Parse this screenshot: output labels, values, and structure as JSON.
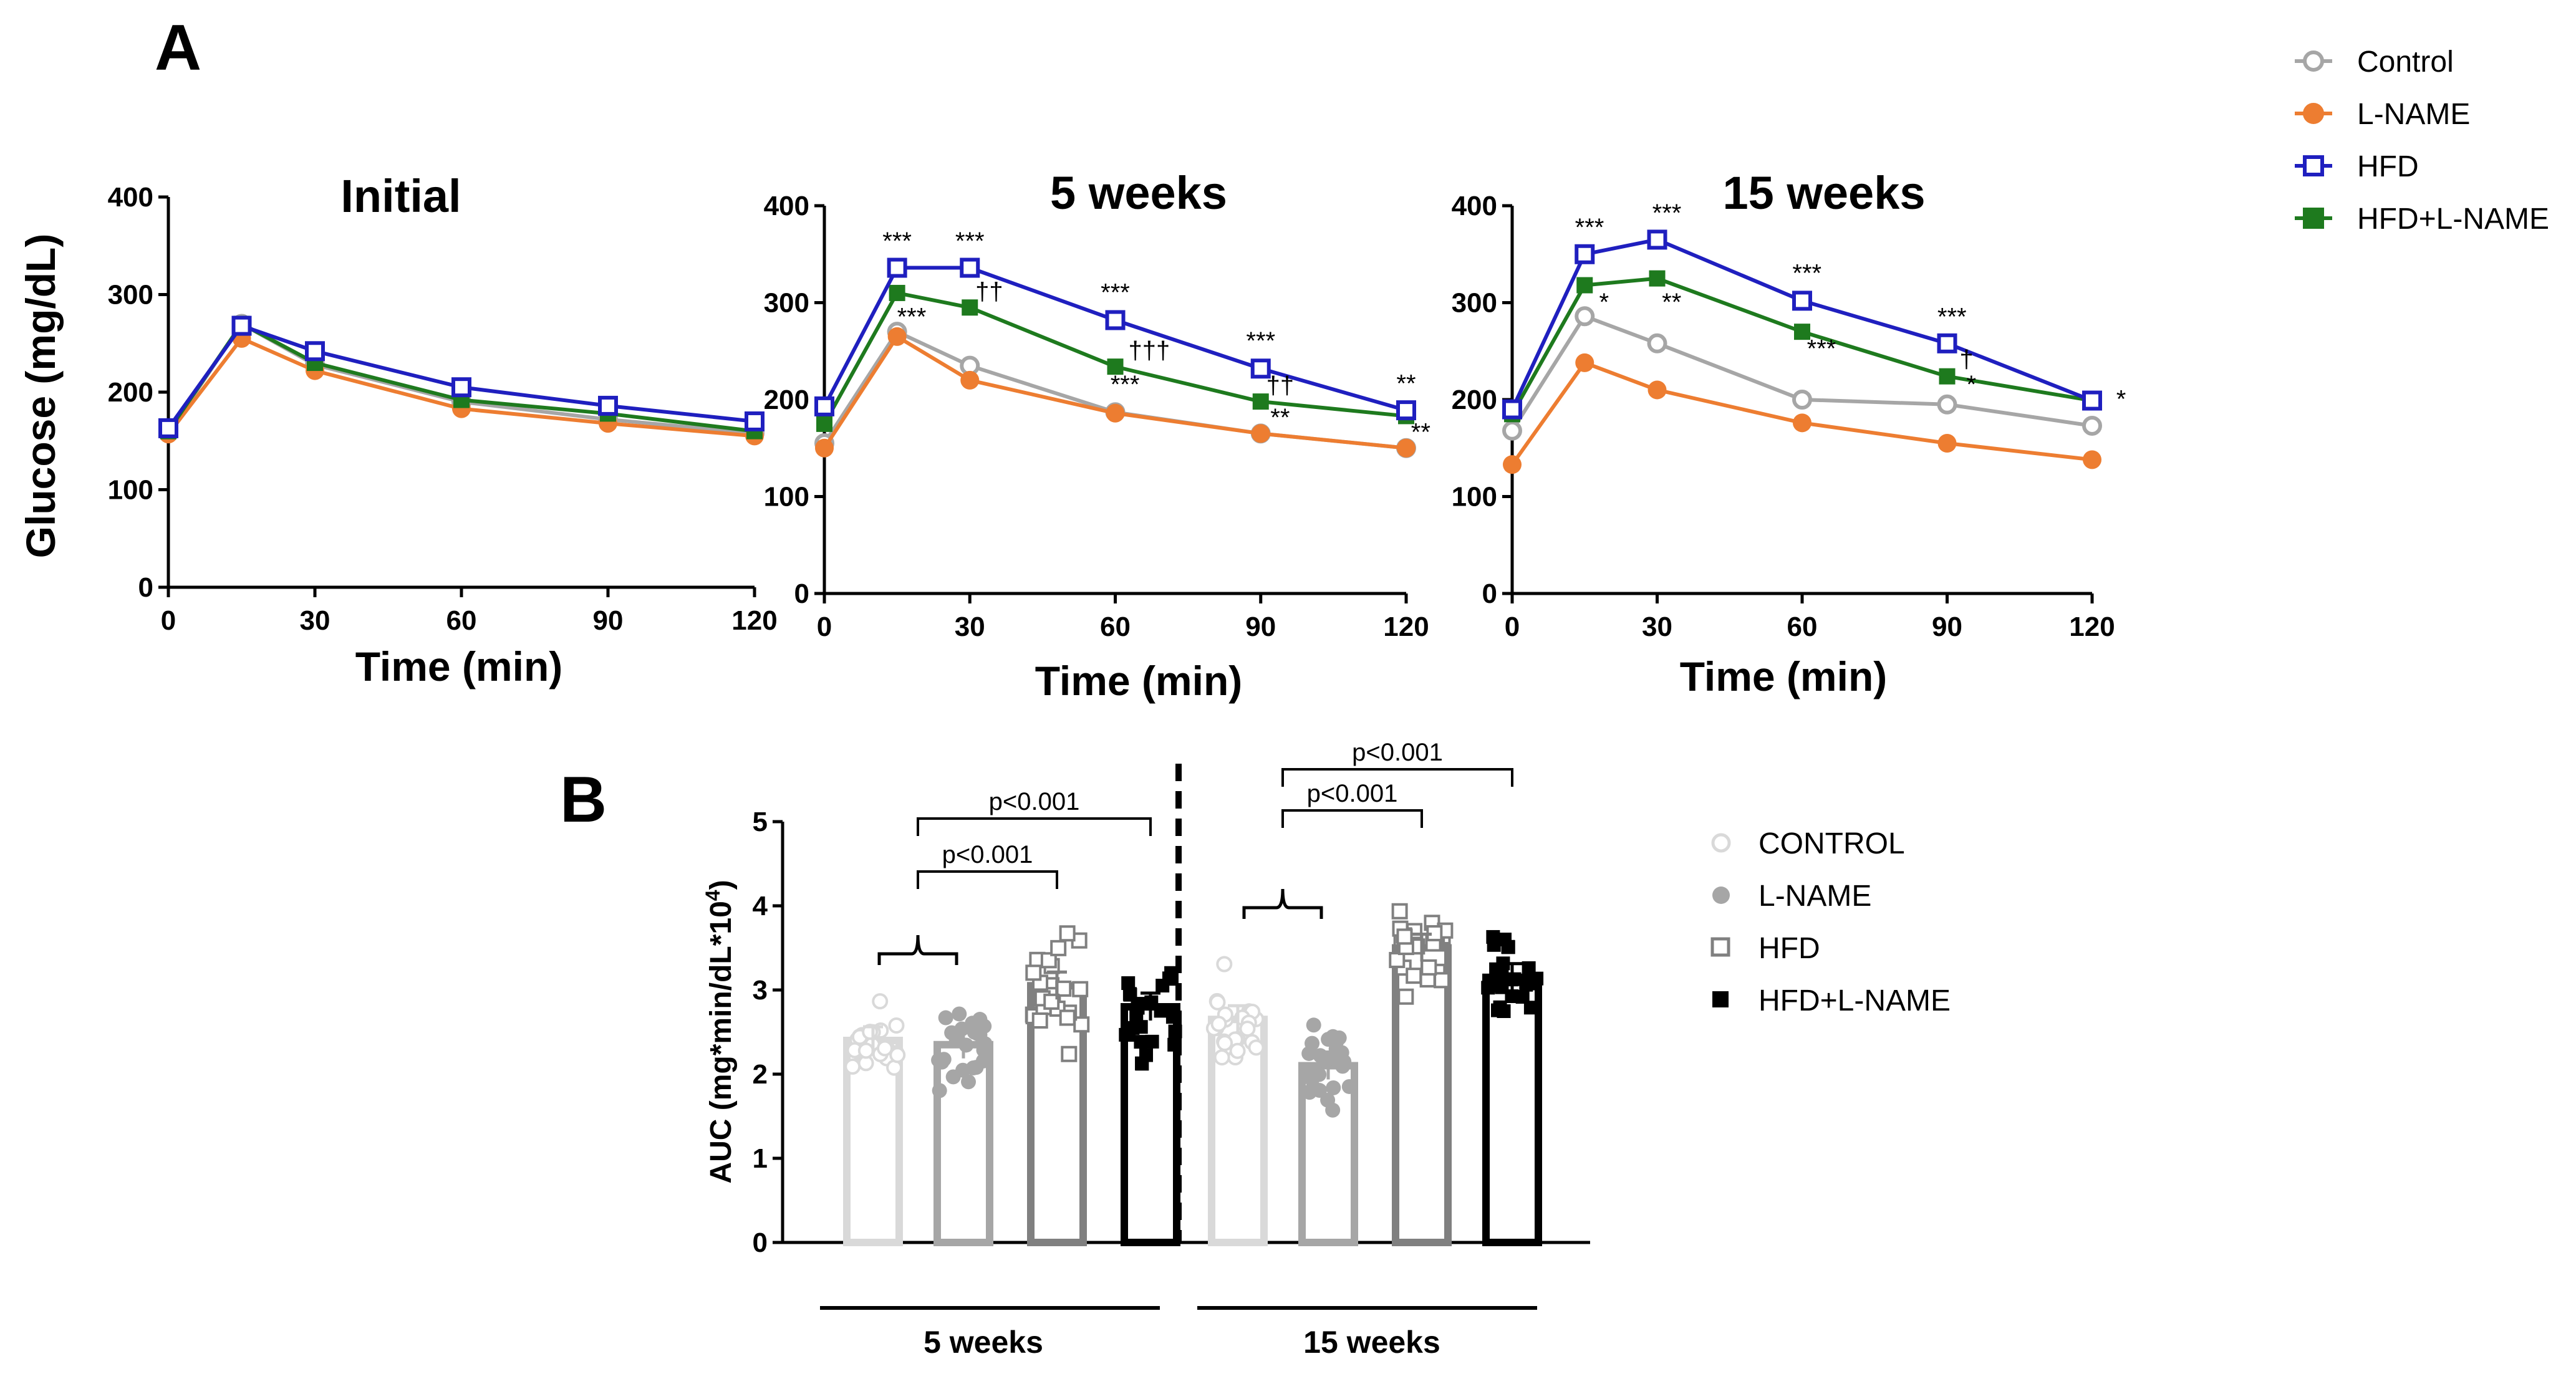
{
  "panel_labels": {
    "a": "A",
    "b": "B"
  },
  "colors": {
    "Control": "#a6a6a6",
    "L-NAME": "#ed7d31",
    "HFD": "#1f1fbf",
    "HFD+L-NAME": "#1e7a1e",
    "bar_control": "#d9d9d9",
    "bar_lname": "#a6a6a6",
    "bar_hfd": "#808080",
    "bar_hfdlname": "#000000"
  },
  "legend_a": [
    "Control",
    "L-NAME",
    "HFD",
    "HFD+L-NAME"
  ],
  "legend_b": [
    "CONTROL",
    "L-NAME",
    "HFD",
    "HFD+L-NAME"
  ],
  "chart_data": [
    {
      "type": "line",
      "title": "Initial",
      "xlabel": "Time (min)",
      "ylabel": "Glucose (mg/dL)",
      "x": [
        0,
        15,
        30,
        60,
        90,
        120
      ],
      "xticks": [
        "0",
        "30",
        "60",
        "90",
        "120"
      ],
      "yticks": [
        "0",
        "100",
        "200",
        "300",
        "400"
      ],
      "xlim": [
        0,
        120
      ],
      "ylim": [
        0,
        400
      ],
      "series": [
        {
          "name": "Control",
          "values": [
            158,
            270,
            228,
            190,
            172,
            158
          ]
        },
        {
          "name": "L-NAME",
          "values": [
            157,
            255,
            222,
            183,
            168,
            155
          ]
        },
        {
          "name": "HFD+L-NAME",
          "values": [
            160,
            270,
            230,
            192,
            178,
            160
          ]
        },
        {
          "name": "HFD",
          "values": [
            163,
            268,
            242,
            205,
            186,
            170
          ]
        }
      ],
      "annotations": []
    },
    {
      "type": "line",
      "title": "5 weeks",
      "xlabel": "Time (min)",
      "ylabel": "",
      "x": [
        0,
        15,
        30,
        60,
        90,
        120
      ],
      "xticks": [
        "0",
        "30",
        "60",
        "90",
        "120"
      ],
      "yticks": [
        "0",
        "100",
        "200",
        "300",
        "400"
      ],
      "xlim": [
        0,
        120
      ],
      "ylim": [
        0,
        400
      ],
      "series": [
        {
          "name": "Control",
          "values": [
            155,
            270,
            235,
            187,
            165,
            150
          ]
        },
        {
          "name": "L-NAME",
          "values": [
            150,
            265,
            220,
            186,
            165,
            150
          ]
        },
        {
          "name": "HFD+L-NAME",
          "values": [
            175,
            310,
            295,
            234,
            198,
            183
          ]
        },
        {
          "name": "HFD",
          "values": [
            193,
            336,
            336,
            282,
            232,
            189
          ]
        }
      ],
      "annotations": [
        {
          "text": "***",
          "x": 15,
          "y": 355
        },
        {
          "text": "***",
          "x": 30,
          "y": 355
        },
        {
          "text": "***",
          "x": 60,
          "y": 302
        },
        {
          "text": "***",
          "x": 90,
          "y": 252
        },
        {
          "text": "**",
          "x": 120,
          "y": 208
        },
        {
          "text": "***",
          "x": 18,
          "y": 277
        },
        {
          "text": "††",
          "x": 34,
          "y": 303
        },
        {
          "text": "†††",
          "x": 67,
          "y": 242
        },
        {
          "text": "***",
          "x": 62,
          "y": 207
        },
        {
          "text": "††",
          "x": 94,
          "y": 206
        },
        {
          "text": "**",
          "x": 94,
          "y": 173
        },
        {
          "text": "**",
          "x": 123,
          "y": 158
        }
      ]
    },
    {
      "type": "line",
      "title": "15 weeks",
      "xlabel": "Time (min)",
      "ylabel": "",
      "x": [
        0,
        15,
        30,
        60,
        90,
        120
      ],
      "xticks": [
        "0",
        "30",
        "60",
        "90",
        "120"
      ],
      "yticks": [
        "0",
        "100",
        "200",
        "300",
        "400"
      ],
      "xlim": [
        0,
        120
      ],
      "ylim": [
        0,
        400
      ],
      "series": [
        {
          "name": "Control",
          "values": [
            168,
            286,
            258,
            200,
            195,
            173
          ]
        },
        {
          "name": "L-NAME",
          "values": [
            133,
            238,
            210,
            176,
            155,
            138
          ]
        },
        {
          "name": "HFD+L-NAME",
          "values": [
            185,
            318,
            325,
            270,
            224,
            199
          ]
        },
        {
          "name": "HFD",
          "values": [
            190,
            350,
            365,
            302,
            258,
            199
          ]
        }
      ],
      "annotations": [
        {
          "text": "***",
          "x": 16,
          "y": 369
        },
        {
          "text": "***",
          "x": 32,
          "y": 384
        },
        {
          "text": "***",
          "x": 61,
          "y": 322
        },
        {
          "text": "***",
          "x": 91,
          "y": 277
        },
        {
          "text": "*",
          "x": 19,
          "y": 292
        },
        {
          "text": "**",
          "x": 33,
          "y": 292
        },
        {
          "text": "***",
          "x": 64,
          "y": 244
        },
        {
          "text": "†",
          "x": 94,
          "y": 233
        },
        {
          "text": "*",
          "x": 95,
          "y": 207
        },
        {
          "text": "*",
          "x": 126,
          "y": 192
        }
      ]
    },
    {
      "type": "bar",
      "title": "",
      "ylabel": "AUC (mg*min/dL*10⁴)",
      "yticks": [
        "0",
        "1",
        "2",
        "3",
        "4",
        "5"
      ],
      "ylim": [
        0,
        5
      ],
      "groups": [
        "5 weeks",
        "15 weeks"
      ],
      "categories": [
        "CONTROL",
        "L-NAME",
        "HFD",
        "HFD+L-NAME"
      ],
      "series": [
        {
          "name": "5 weeks",
          "values": [
            2.4,
            2.35,
            3.05,
            2.8
          ]
        },
        {
          "name": "15 weeks",
          "values": [
            2.65,
            2.1,
            3.5,
            3.15
          ]
        }
      ],
      "annotations": [
        {
          "text": "p<0.001",
          "group": "5 weeks",
          "from": "CONTROL+L-NAME",
          "to": "HFD"
        },
        {
          "text": "p<0.001",
          "group": "5 weeks",
          "from": "CONTROL+L-NAME",
          "to": "HFD+L-NAME"
        },
        {
          "text": "p<0.001",
          "group": "15 weeks",
          "from": "CONTROL+L-NAME",
          "to": "HFD"
        },
        {
          "text": "p<0.001",
          "group": "15 weeks",
          "from": "CONTROL+L-NAME",
          "to": "HFD+L-NAME"
        }
      ]
    }
  ]
}
